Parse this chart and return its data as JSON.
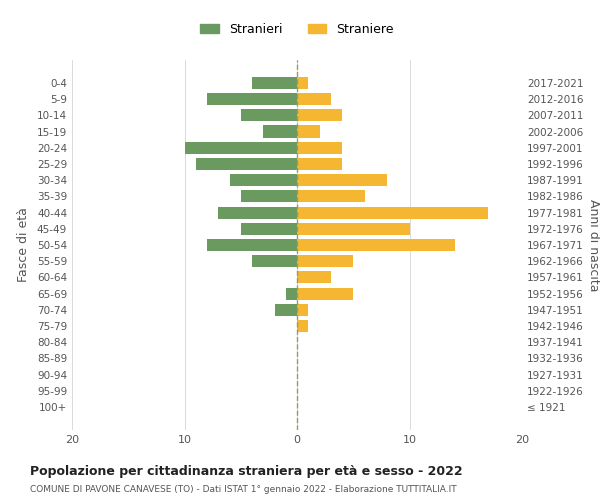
{
  "age_groups": [
    "100+",
    "95-99",
    "90-94",
    "85-89",
    "80-84",
    "75-79",
    "70-74",
    "65-69",
    "60-64",
    "55-59",
    "50-54",
    "45-49",
    "40-44",
    "35-39",
    "30-34",
    "25-29",
    "20-24",
    "15-19",
    "10-14",
    "5-9",
    "0-4"
  ],
  "birth_years": [
    "≤ 1921",
    "1922-1926",
    "1927-1931",
    "1932-1936",
    "1937-1941",
    "1942-1946",
    "1947-1951",
    "1952-1956",
    "1957-1961",
    "1962-1966",
    "1967-1971",
    "1972-1976",
    "1977-1981",
    "1982-1986",
    "1987-1991",
    "1992-1996",
    "1997-2001",
    "2002-2006",
    "2007-2011",
    "2012-2016",
    "2017-2021"
  ],
  "males": [
    0,
    0,
    0,
    0,
    0,
    0,
    2,
    1,
    0,
    4,
    8,
    5,
    7,
    5,
    6,
    9,
    10,
    3,
    5,
    8,
    4
  ],
  "females": [
    0,
    0,
    0,
    0,
    0,
    1,
    1,
    5,
    3,
    5,
    14,
    10,
    17,
    6,
    8,
    4,
    4,
    2,
    4,
    3,
    1
  ],
  "male_color": "#6a9a5f",
  "female_color": "#f5b731",
  "title": "Popolazione per cittadinanza straniera per età e sesso - 2022",
  "subtitle": "COMUNE DI PAVONE CANAVESE (TO) - Dati ISTAT 1° gennaio 2022 - Elaborazione TUTTITALIA.IT",
  "ylabel_left": "Fasce di età",
  "ylabel_right": "Anni di nascita",
  "legend_male": "Stranieri",
  "legend_female": "Straniere",
  "xlim": 20,
  "background_color": "#ffffff",
  "grid_color": "#cccccc",
  "dashed_line_color": "#999966",
  "bar_height": 0.75
}
